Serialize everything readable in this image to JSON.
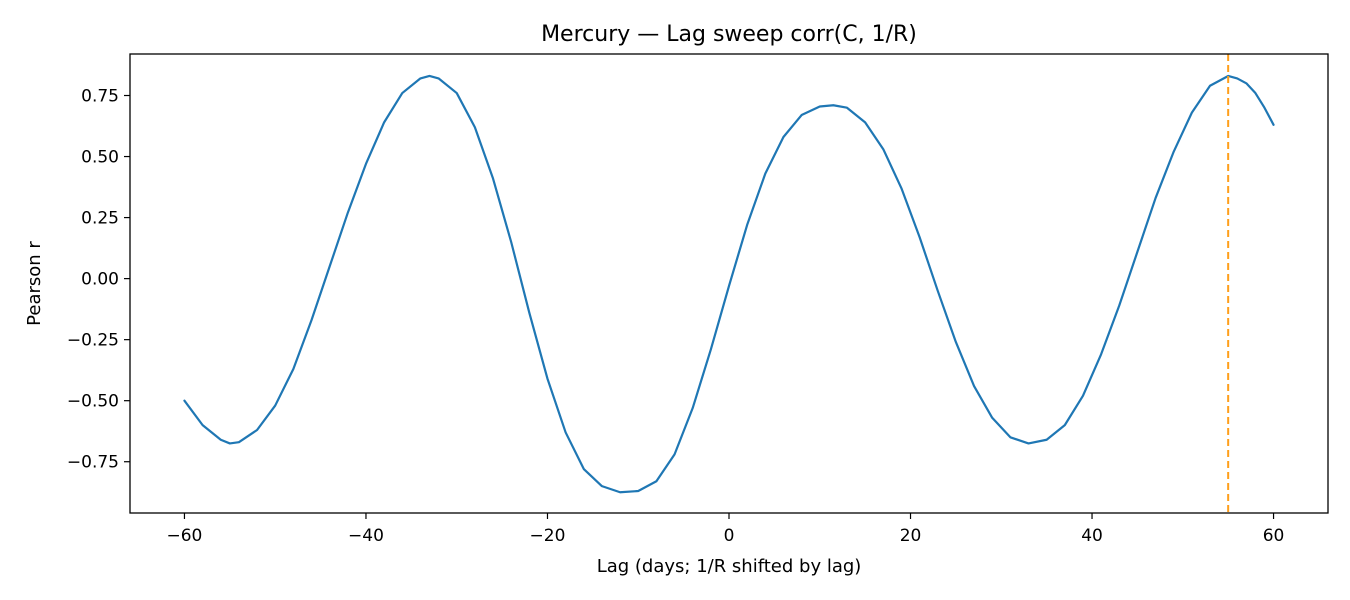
{
  "chart_data": {
    "type": "line",
    "title": "Mercury — Lag sweep corr(C, 1/R)",
    "xlabel": "Lag (days; 1/R shifted by lag)",
    "ylabel": "Pearson r",
    "xlim": [
      -66,
      66
    ],
    "ylim": [
      -0.96,
      0.92
    ],
    "xticks": [
      -60,
      -40,
      -20,
      0,
      20,
      40,
      60
    ],
    "xtick_labels": [
      "−60",
      "−40",
      "−20",
      "0",
      "20",
      "40",
      "60"
    ],
    "yticks": [
      0.75,
      0.5,
      0.25,
      0.0,
      -0.25,
      -0.5,
      -0.75
    ],
    "ytick_labels": [
      "0.75",
      "0.50",
      "0.25",
      "0.00",
      "−0.25",
      "−0.50",
      "−0.75"
    ],
    "grid": false,
    "series": [
      {
        "color": "#1f77b4",
        "points": [
          [
            -60,
            -0.5
          ],
          [
            -58,
            -0.6
          ],
          [
            -56,
            -0.66
          ],
          [
            -55,
            -0.675
          ],
          [
            -54,
            -0.67
          ],
          [
            -52,
            -0.62
          ],
          [
            -50,
            -0.52
          ],
          [
            -48,
            -0.37
          ],
          [
            -46,
            -0.17
          ],
          [
            -44,
            0.05
          ],
          [
            -42,
            0.27
          ],
          [
            -40,
            0.47
          ],
          [
            -38,
            0.64
          ],
          [
            -36,
            0.76
          ],
          [
            -34,
            0.82
          ],
          [
            -33,
            0.83
          ],
          [
            -32,
            0.82
          ],
          [
            -30,
            0.76
          ],
          [
            -28,
            0.62
          ],
          [
            -26,
            0.41
          ],
          [
            -24,
            0.15
          ],
          [
            -22,
            -0.14
          ],
          [
            -20,
            -0.41
          ],
          [
            -18,
            -0.63
          ],
          [
            -16,
            -0.78
          ],
          [
            -14,
            -0.85
          ],
          [
            -12,
            -0.875
          ],
          [
            -10,
            -0.87
          ],
          [
            -8,
            -0.83
          ],
          [
            -6,
            -0.72
          ],
          [
            -4,
            -0.53
          ],
          [
            -2,
            -0.29
          ],
          [
            0,
            -0.03
          ],
          [
            2,
            0.22
          ],
          [
            4,
            0.43
          ],
          [
            6,
            0.58
          ],
          [
            8,
            0.67
          ],
          [
            10,
            0.705
          ],
          [
            11.5,
            0.71
          ],
          [
            13,
            0.7
          ],
          [
            15,
            0.64
          ],
          [
            17,
            0.53
          ],
          [
            19,
            0.37
          ],
          [
            21,
            0.17
          ],
          [
            23,
            -0.05
          ],
          [
            25,
            -0.26
          ],
          [
            27,
            -0.44
          ],
          [
            29,
            -0.57
          ],
          [
            31,
            -0.65
          ],
          [
            33,
            -0.675
          ],
          [
            35,
            -0.66
          ],
          [
            37,
            -0.6
          ],
          [
            39,
            -0.48
          ],
          [
            41,
            -0.31
          ],
          [
            43,
            -0.11
          ],
          [
            45,
            0.11
          ],
          [
            47,
            0.33
          ],
          [
            49,
            0.52
          ],
          [
            51,
            0.68
          ],
          [
            53,
            0.79
          ],
          [
            55,
            0.83
          ],
          [
            56,
            0.82
          ],
          [
            57,
            0.8
          ],
          [
            58,
            0.76
          ],
          [
            59,
            0.7
          ],
          [
            60,
            0.63
          ]
        ]
      }
    ],
    "vline": {
      "x": 55,
      "color": "#ff9f1a",
      "style": "dashed"
    }
  }
}
